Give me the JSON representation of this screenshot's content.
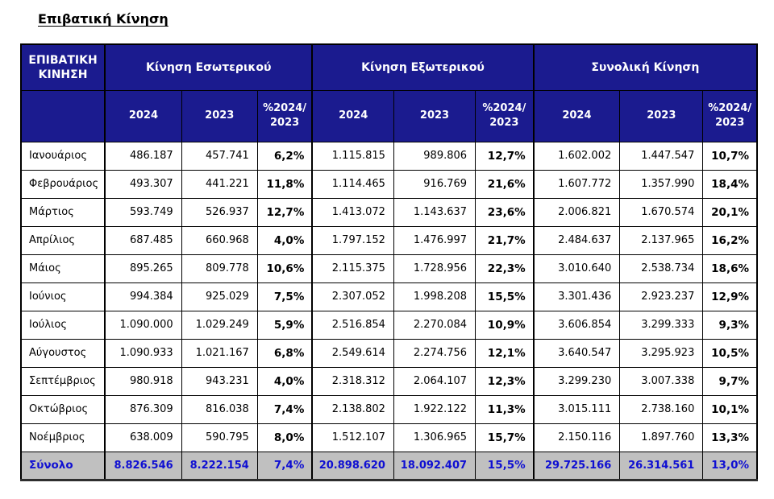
{
  "title": "Επιβατική Κίνηση",
  "colors": {
    "header_bg": "#1b1b8f",
    "header_text": "#ffffff",
    "total_row_bg": "#c0c0c0",
    "total_text": "#0f0fd2",
    "border": "#000000",
    "body_bg": "#ffffff"
  },
  "table": {
    "corner_header": "ΕΠΙΒΑΤΙΚΗ ΚΙΝΗΣΗ",
    "groups": [
      {
        "label": "Κίνηση Εσωτερικού"
      },
      {
        "label": "Κίνηση Εξωτερικού"
      },
      {
        "label": "Συνολική Κίνηση"
      }
    ],
    "year_cols": [
      "2024",
      "2023",
      "%2024/\n2023"
    ],
    "rows": [
      {
        "label": "Ιανουάριος",
        "values": [
          "486.187",
          "457.741",
          "6,2%",
          "1.115.815",
          "989.806",
          "12,7%",
          "1.602.002",
          "1.447.547",
          "10,7%"
        ]
      },
      {
        "label": "Φεβρουάριος",
        "values": [
          "493.307",
          "441.221",
          "11,8%",
          "1.114.465",
          "916.769",
          "21,6%",
          "1.607.772",
          "1.357.990",
          "18,4%"
        ]
      },
      {
        "label": "Μάρτιος",
        "values": [
          "593.749",
          "526.937",
          "12,7%",
          "1.413.072",
          "1.143.637",
          "23,6%",
          "2.006.821",
          "1.670.574",
          "20,1%"
        ]
      },
      {
        "label": "Απρίλιος",
        "values": [
          "687.485",
          "660.968",
          "4,0%",
          "1.797.152",
          "1.476.997",
          "21,7%",
          "2.484.637",
          "2.137.965",
          "16,2%"
        ]
      },
      {
        "label": "Μάιος",
        "values": [
          "895.265",
          "809.778",
          "10,6%",
          "2.115.375",
          "1.728.956",
          "22,3%",
          "3.010.640",
          "2.538.734",
          "18,6%"
        ]
      },
      {
        "label": "Ιούνιος",
        "values": [
          "994.384",
          "925.029",
          "7,5%",
          "2.307.052",
          "1.998.208",
          "15,5%",
          "3.301.436",
          "2.923.237",
          "12,9%"
        ]
      },
      {
        "label": "Ιούλιος",
        "values": [
          "1.090.000",
          "1.029.249",
          "5,9%",
          "2.516.854",
          "2.270.084",
          "10,9%",
          "3.606.854",
          "3.299.333",
          "9,3%"
        ]
      },
      {
        "label": "Αύγουστος",
        "values": [
          "1.090.933",
          "1.021.167",
          "6,8%",
          "2.549.614",
          "2.274.756",
          "12,1%",
          "3.640.547",
          "3.295.923",
          "10,5%"
        ]
      },
      {
        "label": "Σεπτέμβριος",
        "values": [
          "980.918",
          "943.231",
          "4,0%",
          "2.318.312",
          "2.064.107",
          "12,3%",
          "3.299.230",
          "3.007.338",
          "9,7%"
        ]
      },
      {
        "label": "Οκτώβριος",
        "values": [
          "876.309",
          "816.038",
          "7,4%",
          "2.138.802",
          "1.922.122",
          "11,3%",
          "3.015.111",
          "2.738.160",
          "10,1%"
        ]
      },
      {
        "label": "Νοέμβριος",
        "values": [
          "638.009",
          "590.795",
          "8,0%",
          "1.512.107",
          "1.306.965",
          "15,7%",
          "2.150.116",
          "1.897.760",
          "13,3%"
        ]
      }
    ],
    "total": {
      "label": "Σύνολο",
      "values": [
        "8.826.546",
        "8.222.154",
        "7,4%",
        "20.898.620",
        "18.092.407",
        "15,5%",
        "29.725.166",
        "26.314.561",
        "13,0%"
      ]
    }
  }
}
